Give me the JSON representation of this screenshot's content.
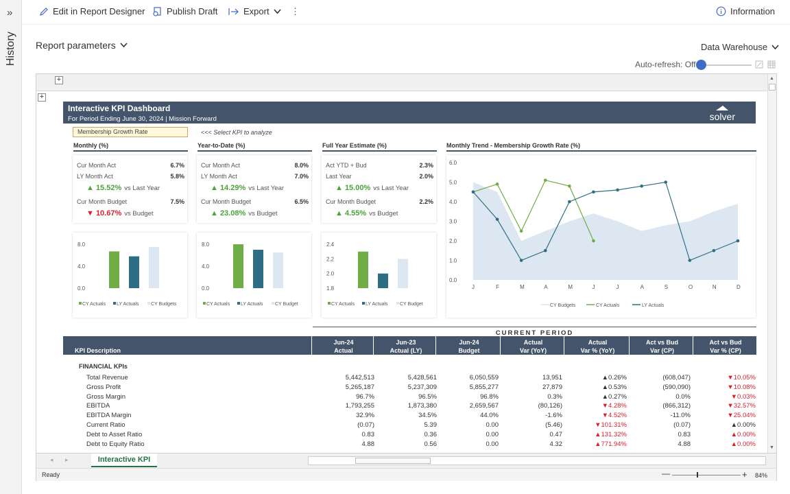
{
  "sidebar": {
    "expand": "»",
    "label": "History"
  },
  "toolbar": {
    "edit": "Edit in Report Designer",
    "publish": "Publish Draft",
    "export": "Export",
    "more": "⋮",
    "info": "Information"
  },
  "params": {
    "label": "Report parameters",
    "source": "Data Warehouse",
    "autorefresh": "Auto-refresh: Off"
  },
  "dashboard": {
    "title": "Interactive KPI Dashboard",
    "subtitle": "For Period Ending June 30, 2024 | Mission Forward",
    "logo": "solver",
    "selected_kpi": "Membership Growth Rate",
    "hint": "<<<  Select KPI to analyze",
    "sections": {
      "monthly": "Monthly  (%)",
      "ytd": "Year-to-Date  (%)",
      "fye": "Full Year Estimate  (%)",
      "trend": "Monthly Trend - Membership Growth Rate (%)"
    },
    "cards": [
      {
        "r1": "Cur Month Act",
        "v1": "6.7%",
        "r2": "LY Month Act",
        "v2": "5.8%",
        "big1": "▲ 15.52%",
        "s1": "vs Last Year",
        "r3": "Cur Month Budget",
        "v3": "7.5%",
        "big2": "▼ 10.67%",
        "s2": "vs Budget",
        "d1": "up",
        "d2": "dn"
      },
      {
        "r1": "Cur Month Act",
        "v1": "8.0%",
        "r2": "LY Month Act",
        "v2": "7.0%",
        "big1": "▲ 14.29%",
        "s1": "vs Last Year",
        "r3": "Cur Month Budget",
        "v3": "6.5%",
        "big2": "▲ 23.08%",
        "s2": "vs Budget",
        "d1": "up",
        "d2": "up"
      },
      {
        "r1": "Act YTD + Bud",
        "v1": "2.3%",
        "r2": "Last Year",
        "v2": "2.0%",
        "big1": "▲ 15.00%",
        "s1": "vs Last Year",
        "r3": "Cur Month Budget",
        "v3": "2.2%",
        "big2": "▲ 4.55%",
        "s2": "vs Budget",
        "d1": "up",
        "d2": "up"
      }
    ]
  },
  "chart_data": [
    {
      "type": "bar",
      "categories": [
        "CY Actuals",
        "LY Actuals",
        "CY Budgets"
      ],
      "values": [
        6.7,
        5.8,
        7.5
      ],
      "ylim": [
        0,
        8
      ],
      "ticks": [
        "8.0",
        "4.0",
        "0.0"
      ],
      "legend": [
        "CY Actuals",
        "LY Actuals",
        "CY Budgets"
      ]
    },
    {
      "type": "bar",
      "categories": [
        "CY Actuals",
        "LY Actuals",
        "CY Budget"
      ],
      "values": [
        8.0,
        7.0,
        6.5
      ],
      "ylim": [
        0,
        8
      ],
      "ticks": [
        "8.0",
        "4.0",
        "0.0"
      ],
      "legend": [
        "CY Actuals",
        "LY Actuals",
        "CY Budget"
      ]
    },
    {
      "type": "bar",
      "categories": [
        "CY Actuals",
        "LY Actuals",
        "CY Budget"
      ],
      "values": [
        2.3,
        2.0,
        2.2
      ],
      "ylim": [
        1.8,
        2.4
      ],
      "ticks": [
        "2.4",
        "2.2",
        "2.0",
        "1.8"
      ],
      "legend": [
        "CY Actuals",
        "LY Actuals",
        "CY Budget"
      ]
    },
    {
      "type": "line",
      "x": [
        "J",
        "F",
        "M",
        "A",
        "M",
        "J",
        "J",
        "A",
        "S",
        "O",
        "N",
        "D"
      ],
      "ylim": [
        0,
        6
      ],
      "yticks": [
        "6.0",
        "5.0",
        "4.0",
        "3.0",
        "2.0",
        "1.0",
        "0.0"
      ],
      "series": [
        {
          "name": "CY Budgets",
          "kind": "area",
          "values": [
            5.0,
            4.5,
            2.0,
            2.5,
            3.0,
            3.4,
            3.0,
            2.5,
            2.8,
            3.0,
            3.5,
            3.9
          ]
        },
        {
          "name": "CY Actuals",
          "values": [
            4.5,
            4.9,
            2.5,
            5.1,
            4.8,
            2.0,
            null,
            null,
            null,
            null,
            null,
            null
          ]
        },
        {
          "name": "LY Actuals",
          "values": [
            4.5,
            3.1,
            1.0,
            1.5,
            4.0,
            4.5,
            4.6,
            4.8,
            5.0,
            1.0,
            1.5,
            2.0
          ]
        }
      ]
    }
  ],
  "table": {
    "current_period": "CURRENT PERIOD",
    "headers": [
      [
        "KPI Description",
        ""
      ],
      [
        "Jun-24",
        "Actual"
      ],
      [
        "Jun-23",
        "Actual (LY)"
      ],
      [
        "Jun-24",
        "Budget"
      ],
      [
        "Actual",
        "Var (YoY)"
      ],
      [
        "Actual",
        "Var % (YoY)"
      ],
      [
        "Act vs Bud",
        "Var (CP)"
      ],
      [
        "Act vs Bud",
        "Var % (CP)"
      ]
    ],
    "section": "FINANCIAL KPIs",
    "rows": [
      {
        "name": "Total Revenue",
        "c": [
          "5,442,513",
          "5,428,561",
          "6,050,559",
          "13,951"
        ],
        "p1": "▲0.26%",
        "p1d": "up",
        "v": "(608,047)",
        "p2": "▼10.05%",
        "p2d": "dn"
      },
      {
        "name": "Gross Profit",
        "c": [
          "5,265,187",
          "5,237,309",
          "5,855,277",
          "27,879"
        ],
        "p1": "▲0.53%",
        "p1d": "up",
        "v": "(590,090)",
        "p2": "▼10.08%",
        "p2d": "dn"
      },
      {
        "name": "Gross Margin",
        "c": [
          "96.7%",
          "96.5%",
          "96.8%",
          "0.3%"
        ],
        "p1": "▲0.27%",
        "p1d": "up",
        "v": "0.0%",
        "p2": "▼0.03%",
        "p2d": "dn"
      },
      {
        "name": "EBITDA",
        "c": [
          "1,793,255",
          "1,873,380",
          "2,659,567",
          "(80,126)"
        ],
        "p1": "▼4.28%",
        "p1d": "dn",
        "v": "(866,312)",
        "p2": "▼32.57%",
        "p2d": "dn"
      },
      {
        "name": "EBITDA Margin",
        "c": [
          "32.9%",
          "34.5%",
          "44.0%",
          "-1.6%"
        ],
        "p1": "▼4.52%",
        "p1d": "dn",
        "v": "-11.0%",
        "p2": "▼25.04%",
        "p2d": "dn"
      },
      {
        "name": "Current Ratio",
        "c": [
          "(0.07)",
          "5.39",
          "0.00",
          "(5.46)"
        ],
        "p1": "▼101.31%",
        "p1d": "dn",
        "v": "(0.07)",
        "p2": "▲0.00%",
        "p2d": "up"
      },
      {
        "name": "Debt to Asset Ratio",
        "c": [
          "0.83",
          "0.36",
          "0.00",
          "0.47"
        ],
        "p1": "▲131.32%",
        "p1d": "dn",
        "v": "0.83",
        "p2": "▲0.00%",
        "p2d": "dn"
      },
      {
        "name": "Debt to Equity Ratio",
        "c": [
          "4.88",
          "0.56",
          "0.00",
          "4.32"
        ],
        "p1": "▲771.94%",
        "p1d": "dn",
        "v": "4.88",
        "p2": "▲0.00%",
        "p2d": "dn"
      }
    ]
  },
  "sheet": {
    "tab": "Interactive KPI",
    "status": "Ready",
    "zoom": "84%",
    "zoom_minus": "—",
    "zoom_plus": "+"
  }
}
